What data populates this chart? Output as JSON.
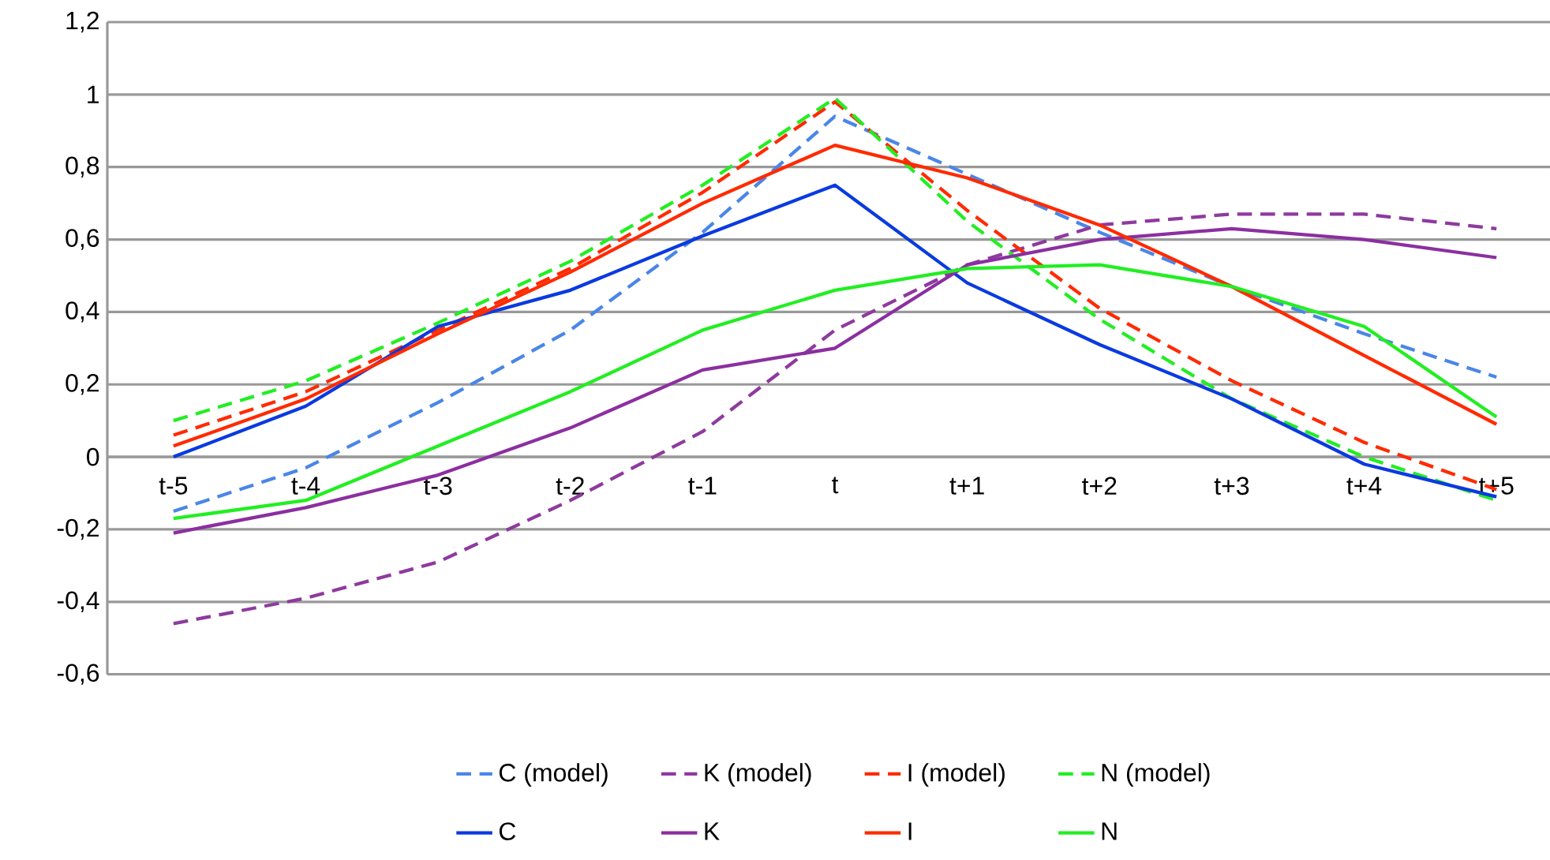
{
  "chart_data": {
    "type": "line",
    "categories": [
      "t-5",
      "t-4",
      "t-3",
      "t-2",
      "t-1",
      "t",
      "t+1",
      "t+2",
      "t+3",
      "t+4",
      "t+5"
    ],
    "ylim": [
      -0.6,
      1.2
    ],
    "yticks": [
      {
        "value": -0.6,
        "label": "-0,6"
      },
      {
        "value": -0.4,
        "label": "-0,4"
      },
      {
        "value": -0.2,
        "label": "-0,2"
      },
      {
        "value": 0,
        "label": "0"
      },
      {
        "value": 0.2,
        "label": "0,2"
      },
      {
        "value": 0.4,
        "label": "0,4"
      },
      {
        "value": 0.6,
        "label": "0,6"
      },
      {
        "value": 0.8,
        "label": "0,8"
      },
      {
        "value": 1,
        "label": "1"
      },
      {
        "value": 1.2,
        "label": "1,2"
      }
    ],
    "grid": "y",
    "legend": "bottom",
    "series": [
      {
        "name": "C (model)",
        "color": "#4a86e8",
        "line_style": "dashed",
        "values": [
          -0.15,
          -0.03,
          0.15,
          0.35,
          0.62,
          0.94,
          0.78,
          0.62,
          0.47,
          0.34,
          0.22
        ]
      },
      {
        "name": "K (model)",
        "color": "#8e3a9e",
        "line_style": "dashed",
        "values": [
          -0.46,
          -0.39,
          -0.29,
          -0.12,
          0.07,
          0.35,
          0.53,
          0.64,
          0.67,
          0.67,
          0.63
        ]
      },
      {
        "name": "I (model)",
        "color": "#ff2a00",
        "line_style": "dashed",
        "values": [
          0.06,
          0.18,
          0.35,
          0.52,
          0.73,
          0.98,
          0.68,
          0.41,
          0.21,
          0.04,
          -0.09
        ]
      },
      {
        "name": "N (model)",
        "color": "#22ee22",
        "line_style": "dashed",
        "values": [
          0.1,
          0.21,
          0.37,
          0.54,
          0.75,
          0.99,
          0.65,
          0.38,
          0.16,
          0.0,
          -0.12
        ]
      },
      {
        "name": "C",
        "color": "#0a3ae0",
        "line_style": "solid",
        "values": [
          0.0,
          0.14,
          0.36,
          0.46,
          0.61,
          0.75,
          0.48,
          0.31,
          0.16,
          -0.02,
          -0.11
        ]
      },
      {
        "name": "K",
        "color": "#8b2fa0",
        "line_style": "solid",
        "values": [
          -0.21,
          -0.14,
          -0.05,
          0.08,
          0.24,
          0.3,
          0.53,
          0.6,
          0.63,
          0.6,
          0.55
        ]
      },
      {
        "name": "I",
        "color": "#ff2a00",
        "line_style": "solid",
        "values": [
          0.03,
          0.16,
          0.34,
          0.51,
          0.7,
          0.86,
          0.77,
          0.64,
          0.47,
          0.28,
          0.09
        ]
      },
      {
        "name": "N",
        "color": "#22ee22",
        "line_style": "solid",
        "values": [
          -0.17,
          -0.12,
          0.03,
          0.18,
          0.35,
          0.46,
          0.52,
          0.53,
          0.47,
          0.36,
          0.11
        ]
      }
    ]
  }
}
